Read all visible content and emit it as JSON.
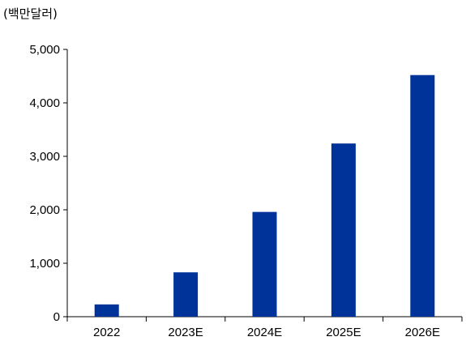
{
  "chart_data": {
    "type": "bar",
    "unit_label": "(백만달러)",
    "categories": [
      "2022",
      "2023E",
      "2024E",
      "2025E",
      "2026E"
    ],
    "values": [
      230,
      830,
      1960,
      3240,
      4520
    ],
    "ylim": [
      0,
      5000
    ],
    "yticks": [
      0,
      1000,
      2000,
      3000,
      4000,
      5000
    ],
    "ytick_labels": [
      "0",
      "1,000",
      "2,000",
      "3,000",
      "4,000",
      "5,000"
    ],
    "bar_color": "#003399",
    "grid": false,
    "legend": "none"
  }
}
